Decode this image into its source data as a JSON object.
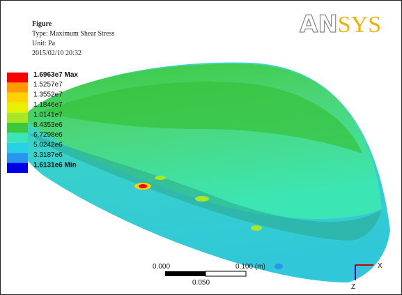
{
  "header": {
    "title": "Figure",
    "type": "Type: Maximum Shear Stress",
    "unit": "Unit: Pa",
    "date": "2015/02/10 20:32"
  },
  "logo": [
    "AN",
    "SYS"
  ],
  "legend": {
    "entries": [
      {
        "label": "1.6963e7 Max",
        "color": "#ff0000"
      },
      {
        "label": "1.5257e7",
        "color": "#ff9a00"
      },
      {
        "label": "1.3552e7",
        "color": "#ffd200"
      },
      {
        "label": "1.1846e7",
        "color": "#e6f000"
      },
      {
        "label": "1.0141e7",
        "color": "#a8e628"
      },
      {
        "label": "8.4353e6",
        "color": "#3cc83c"
      },
      {
        "label": "6.7298e6",
        "color": "#3ce6b4"
      },
      {
        "label": "5.0242e6",
        "color": "#28d2e6"
      },
      {
        "label": "3.3187e6",
        "color": "#2896f0"
      },
      {
        "label": "1.6131e6 Min",
        "color": "#0000e6"
      }
    ]
  },
  "scale_bar": {
    "left": "0.000",
    "right": "0.100 (m)",
    "middle": "0.050"
  },
  "axes": {
    "x": "X",
    "z": "Z"
  }
}
